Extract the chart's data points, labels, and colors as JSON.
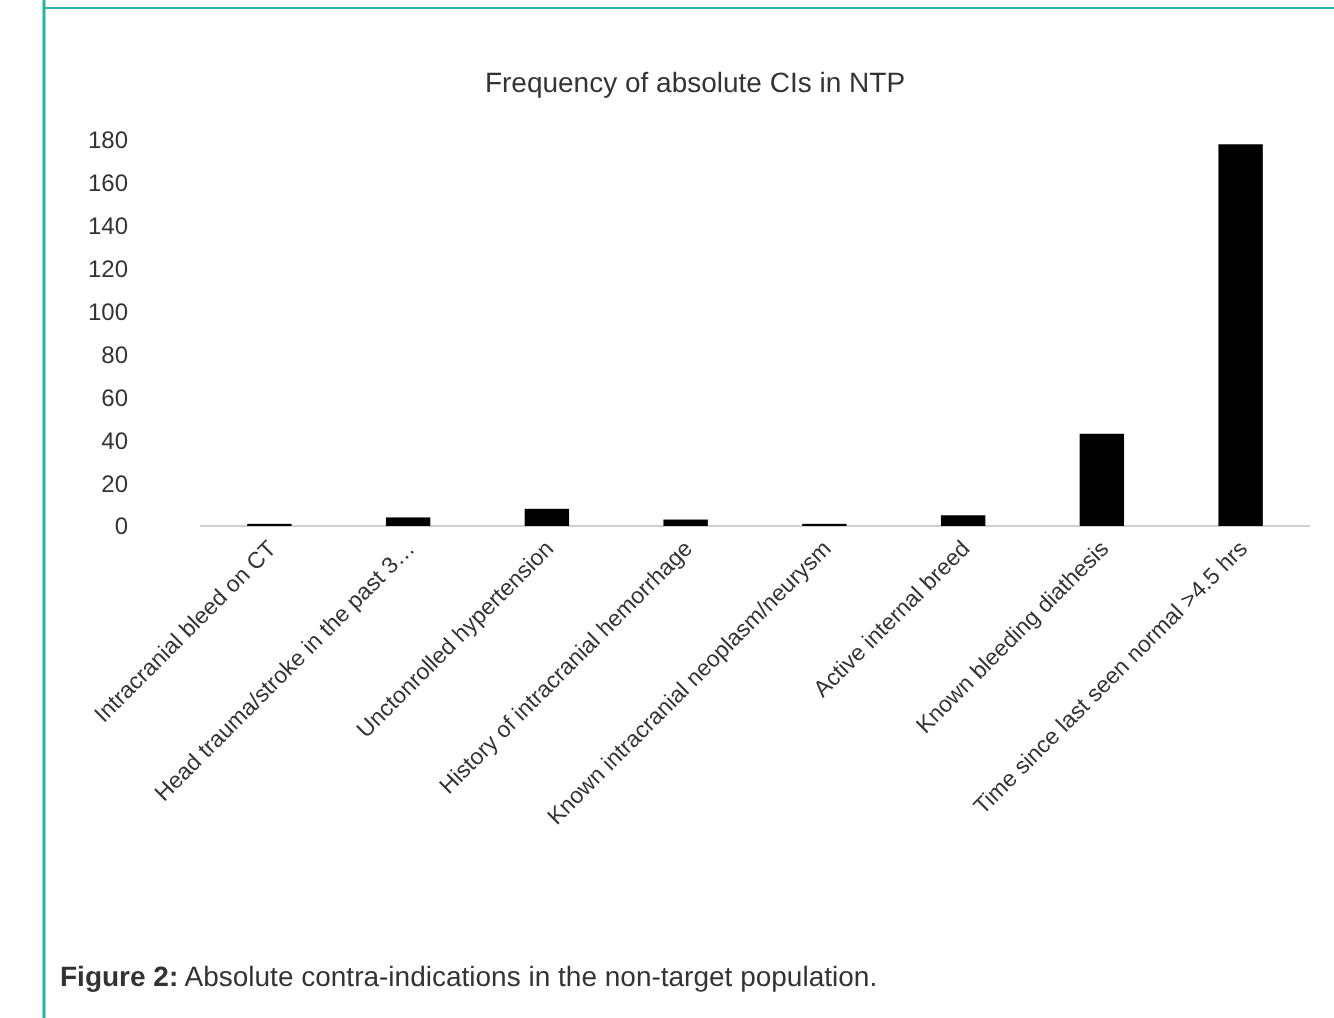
{
  "chart_data": {
    "type": "bar",
    "title": "Frequency of absolute CIs in NTP",
    "categories": [
      "Intracranial bleed on CT",
      "Head trauma/stroke in the past 3…",
      "Unctonrolled hypertension",
      "History of intracranial hemorrhage",
      "Known intracranial neoplasm/neurysm",
      "Active internal breed",
      "Known bleeding diathesis",
      "Time since last seen normal >4.5 hrs"
    ],
    "values": [
      1,
      4,
      8,
      3,
      1,
      5,
      43,
      178
    ],
    "color": "#000000",
    "ylim": [
      0,
      180
    ],
    "yticks": [
      0,
      20,
      40,
      60,
      80,
      100,
      120,
      140,
      160,
      180
    ],
    "grid": false,
    "annotations": [
      "Figure 2: Absolute contra-indications in the non-target population."
    ]
  }
}
